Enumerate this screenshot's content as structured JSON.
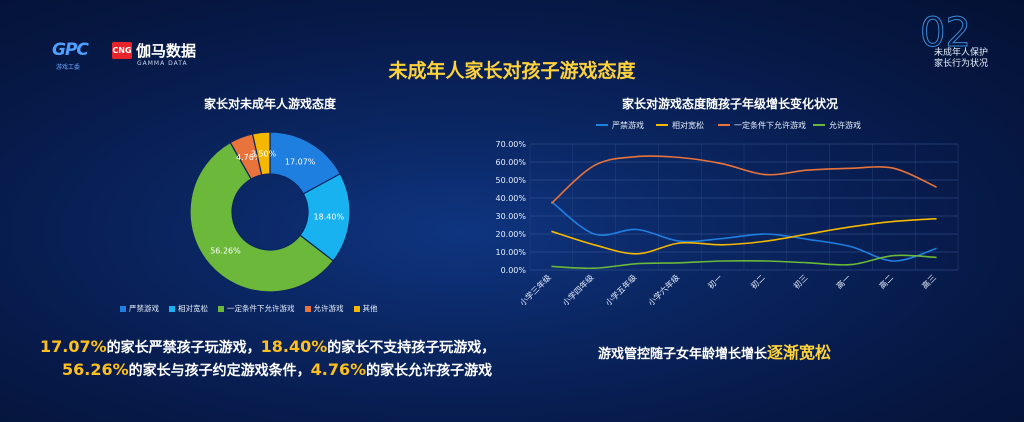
{
  "logos": {
    "gpc": "GPC",
    "gpc_sub": "游戏工委",
    "cng_badge": "CNG",
    "cng_name": "伽马数据",
    "cng_en": "GAMMA DATA"
  },
  "section": {
    "number": "02",
    "line1": "未成年人保护",
    "line2": "家长行为状况"
  },
  "title": "未成年人家长对孩子游戏态度",
  "colors": {
    "blue": "#1f7fe0",
    "cyan": "#18b2f0",
    "green": "#6bb83a",
    "orange": "#e8743b",
    "yellow": "#f5b800",
    "title": "#ffd23a"
  },
  "chart_data": [
    {
      "type": "pie",
      "title": "家长对未成年人游戏态度",
      "categories": [
        "严禁游戏",
        "相对宽松",
        "一定条件下允许游戏",
        "允许游戏",
        "其他"
      ],
      "values": [
        17.07,
        18.4,
        56.26,
        4.76,
        3.5
      ],
      "labels": [
        "17.07%",
        "18.40%",
        "56.26%",
        "4.76%",
        "3.50%"
      ],
      "colors": [
        "#1f7fe0",
        "#18b2f0",
        "#6bb83a",
        "#e8743b",
        "#f5b800"
      ],
      "legend": "bottom"
    },
    {
      "type": "line",
      "title": "家长对游戏态度随孩子年级增长变化状况",
      "x": [
        "小学三年级",
        "小学四年级",
        "小学五年级",
        "小学六年级",
        "初一",
        "初二",
        "初三",
        "高一",
        "高二",
        "高三"
      ],
      "ylim": [
        0,
        70
      ],
      "yticks": [
        "0.00%",
        "10.00%",
        "20.00%",
        "30.00%",
        "40.00%",
        "50.00%",
        "60.00%",
        "70.00%"
      ],
      "grid": true,
      "legend": "top",
      "series": [
        {
          "name": "严禁游戏",
          "color": "#1f7fe0",
          "values": [
            38,
            20,
            22.5,
            16,
            17.5,
            20,
            17,
            13,
            5,
            12
          ]
        },
        {
          "name": "相对宽松",
          "color": "#f5b800",
          "values": [
            21.5,
            14,
            9,
            15,
            14,
            16,
            20,
            24,
            27,
            28.5
          ]
        },
        {
          "name": "一定条件下允许游戏",
          "color": "#e8743b",
          "values": [
            37,
            58,
            63,
            62.5,
            59,
            53,
            55.5,
            56.5,
            56.5,
            46
          ]
        },
        {
          "name": "允许游戏",
          "color": "#6bb83a",
          "values": [
            2,
            1,
            3.5,
            4,
            5,
            5,
            4,
            3,
            8,
            7
          ]
        }
      ]
    }
  ],
  "summary": {
    "p1": "17.07%",
    "t1": "的家长严禁孩子玩游戏，",
    "p2": "18.40%",
    "t2": "的家长不支持孩子玩游戏，",
    "p3": "56.26%",
    "t3": "的家长与孩子约定游戏条件，",
    "p4": "4.76%",
    "t4": "的家长允许孩子游戏"
  },
  "conclusion": {
    "text": "游戏管控随子女年龄增长增长",
    "highlight": "逐渐宽松"
  }
}
